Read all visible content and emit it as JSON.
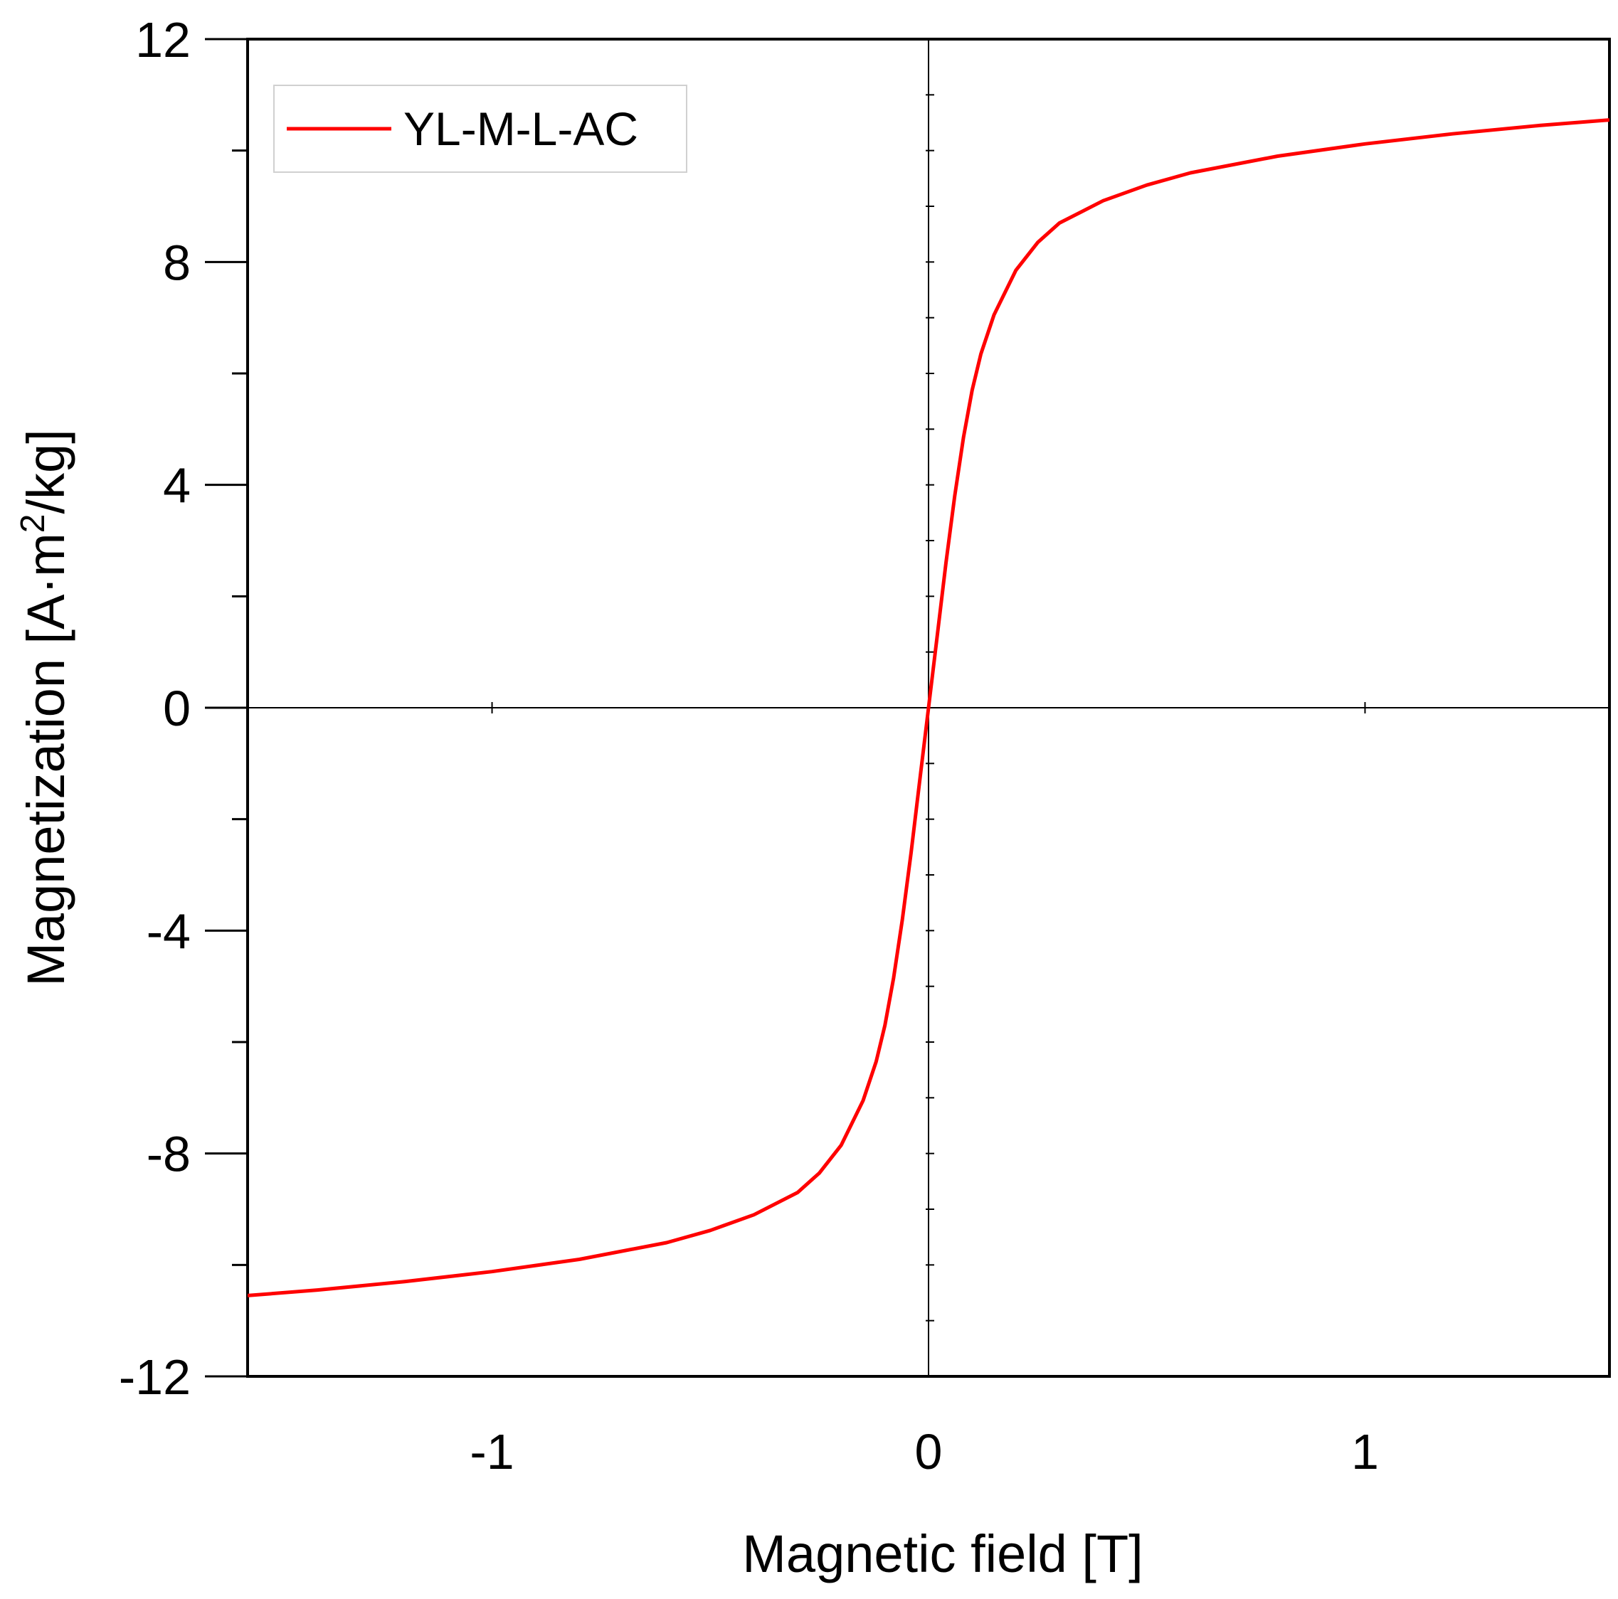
{
  "chart_data": {
    "type": "line",
    "xlabel": "Magnetic field [T]",
    "ylabel_main": "Magnetization [A·m",
    "ylabel_sup": "2",
    "ylabel_tail": "/kg]",
    "xlim": [
      -1.56,
      1.56
    ],
    "ylim": [
      -12,
      12
    ],
    "xticks": [
      -1,
      0,
      1
    ],
    "xtick_labels": [
      "-1",
      "0",
      "1"
    ],
    "yticks": [
      -12,
      -8,
      -4,
      0,
      4,
      8,
      12
    ],
    "ytick_labels": [
      "-12",
      "-8",
      "-4",
      "0",
      "4",
      "8",
      "12"
    ],
    "grid": false,
    "legend_position": "top-left",
    "series": [
      {
        "name": "YL-M-L-AC",
        "color": "#ff0000",
        "x": [
          -1.56,
          -1.4,
          -1.2,
          -1.0,
          -0.8,
          -0.6,
          -0.5,
          -0.4,
          -0.3,
          -0.25,
          -0.2,
          -0.15,
          -0.12,
          -0.1,
          -0.08,
          -0.06,
          -0.04,
          -0.02,
          0,
          0.02,
          0.04,
          0.06,
          0.08,
          0.1,
          0.12,
          0.15,
          0.2,
          0.25,
          0.3,
          0.4,
          0.5,
          0.6,
          0.8,
          1.0,
          1.2,
          1.4,
          1.56
        ],
        "y": [
          -10.55,
          -10.45,
          -10.3,
          -10.12,
          -9.9,
          -9.6,
          -9.38,
          -9.1,
          -8.7,
          -8.35,
          -7.85,
          -7.05,
          -6.35,
          -5.7,
          -4.85,
          -3.8,
          -2.6,
          -1.3,
          0,
          1.3,
          2.6,
          3.8,
          4.85,
          5.7,
          6.35,
          7.05,
          7.85,
          8.35,
          8.7,
          9.1,
          9.38,
          9.6,
          9.9,
          10.12,
          10.3,
          10.45,
          10.55
        ]
      }
    ]
  }
}
